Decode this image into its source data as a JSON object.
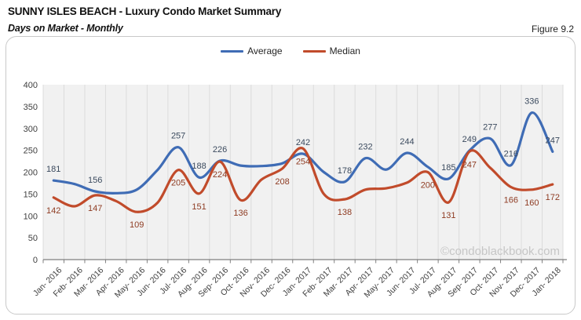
{
  "header": {
    "title": "SUNNY ISLES BEACH - Luxury Condo Market Summary",
    "subtitle": "Days on Market - Monthly",
    "figure_label": "Figure 9.2"
  },
  "watermark": "©condoblackbook.com",
  "colors": {
    "average_line": "#3F6CB5",
    "median_line": "#C14B2B",
    "average_label": "#3B4A5E",
    "median_label": "#8E3B22",
    "plot_background": "#f1f1f1",
    "gridline": "#dcdcdc",
    "axis_line": "#7f7f7f",
    "axis_text": "#404040",
    "watermark_text": "#c6c6c6"
  },
  "chart_data": {
    "type": "line",
    "title": "Days on Market - Monthly",
    "xlabel": "",
    "ylabel": "",
    "ylim": [
      0,
      400
    ],
    "ytick_step": 50,
    "grid": "vertical-only",
    "legend_position": "top-center",
    "smooth": true,
    "categories": [
      "Jan- 2016",
      "Feb- 2016",
      "Mar- 2016",
      "Apr- 2016",
      "May- 2016",
      "Jun- 2016",
      "Jul- 2016",
      "Aug- 2016",
      "Sep- 2016",
      "Oct- 2016",
      "Nov- 2016",
      "Dec- 2016",
      "Jan- 2017",
      "Feb- 2017",
      "Mar- 2017",
      "Apr- 2017",
      "May- 2017",
      "Jun- 2017",
      "Jul- 2017",
      "Aug- 2017",
      "Sep- 2017",
      "Oct- 2017",
      "Nov- 2017",
      "Dec- 2017",
      "Jan- 2018"
    ],
    "series": [
      {
        "name": "Average",
        "color": "#3F6CB5",
        "label_color": "#3B4A5E",
        "label_position": "above",
        "values": [
          181,
          173,
          156,
          152,
          160,
          205,
          257,
          188,
          226,
          215,
          214,
          220,
          242,
          200,
          178,
          232,
          206,
          244,
          212,
          185,
          249,
          277,
          216,
          336,
          247
        ],
        "data_labels": [
          181,
          null,
          156,
          null,
          null,
          null,
          257,
          188,
          226,
          null,
          null,
          null,
          242,
          null,
          178,
          232,
          null,
          244,
          null,
          185,
          249,
          277,
          216,
          336,
          247
        ]
      },
      {
        "name": "Median",
        "color": "#C14B2B",
        "label_color": "#8E3B22",
        "label_position": "below",
        "values": [
          142,
          122,
          147,
          134,
          109,
          130,
          205,
          151,
          224,
          136,
          183,
          208,
          254,
          150,
          138,
          160,
          163,
          176,
          200,
          131,
          247,
          210,
          166,
          160,
          172
        ],
        "data_labels": [
          142,
          null,
          147,
          null,
          109,
          null,
          205,
          151,
          224,
          136,
          null,
          208,
          254,
          null,
          138,
          null,
          null,
          null,
          200,
          131,
          247,
          null,
          166,
          160,
          172
        ]
      }
    ]
  }
}
